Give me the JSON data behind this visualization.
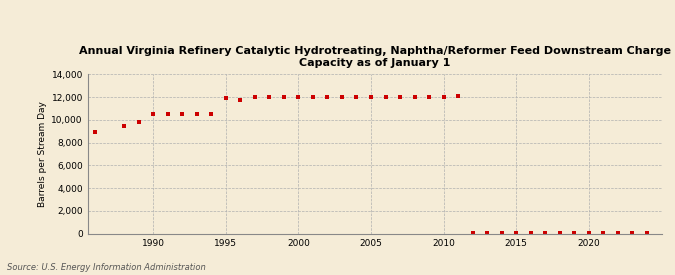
{
  "title": "Annual Virginia Refinery Catalytic Hydrotreating, Naphtha/Reformer Feed Downstream Charge\nCapacity as of January 1",
  "ylabel": "Barrels per Stream Day",
  "source": "Source: U.S. Energy Information Administration",
  "background_color": "#f5ecd7",
  "plot_bg_color": "#f5ecd7",
  "marker_color": "#cc0000",
  "marker": "s",
  "marker_size": 3.5,
  "ylim": [
    0,
    14000
  ],
  "yticks": [
    0,
    2000,
    4000,
    6000,
    8000,
    10000,
    12000,
    14000
  ],
  "xlim": [
    1985.5,
    2025
  ],
  "xticks": [
    1990,
    1995,
    2000,
    2005,
    2010,
    2015,
    2020
  ],
  "data": {
    "years": [
      1986,
      1988,
      1989,
      1990,
      1991,
      1992,
      1993,
      1994,
      1995,
      1996,
      1997,
      1998,
      1999,
      2000,
      2001,
      2002,
      2003,
      2004,
      2005,
      2006,
      2007,
      2008,
      2009,
      2010,
      2011,
      2012,
      2013,
      2014,
      2015,
      2016,
      2017,
      2018,
      2019,
      2020,
      2021,
      2022,
      2023,
      2024
    ],
    "values": [
      8900,
      9500,
      9800,
      10500,
      10500,
      10500,
      10500,
      10500,
      11900,
      11700,
      12000,
      12000,
      12000,
      12000,
      12000,
      12000,
      12000,
      12000,
      12000,
      12000,
      12000,
      12000,
      12000,
      12000,
      12100,
      50,
      50,
      50,
      50,
      50,
      50,
      50,
      50,
      50,
      50,
      50,
      50,
      50
    ]
  }
}
